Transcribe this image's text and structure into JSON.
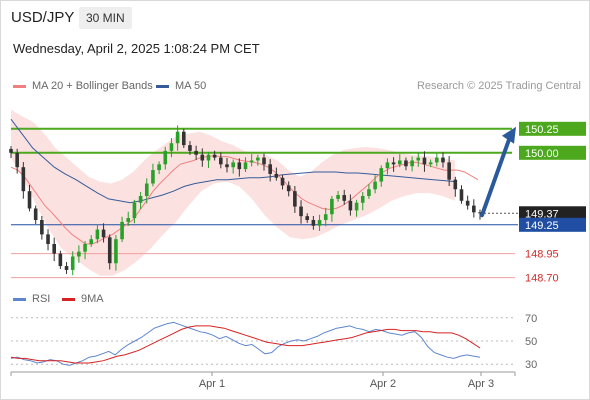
{
  "header": {
    "symbol": "USD/JPY",
    "timeframe": "30 MIN"
  },
  "datetime": "Wednesday, April 2, 2025 1:08:24 PM CET",
  "legend": {
    "ma20": "MA 20 + Bollinger Bands",
    "ma50": "MA 50",
    "credit": "Research © 2025 Trading Central",
    "rsi": "RSI",
    "ma9": "9MA"
  },
  "colors": {
    "candle_up": "#27a127",
    "candle_down": "#333333",
    "ma20": "#f08080",
    "ma50": "#355c99",
    "bollinger": "#fbdcdc",
    "resistance": "#4ca81c",
    "support": "#f2a0a0",
    "pivot": "#1f4ea3",
    "price_label": "#222222",
    "arrow": "#2a5a9c",
    "rsi": "#5e86cf",
    "rsi_ma": "#d62222"
  },
  "chart_data": [
    {
      "type": "candlestick",
      "title": "USD/JPY",
      "ylim": [
        148.55,
        150.55
      ],
      "x_ticks": [
        "Apr 1",
        "Apr 2",
        "Apr 3"
      ],
      "levels": [
        {
          "value": 150.25,
          "label": "150.25",
          "kind": "resistance"
        },
        {
          "value": 150.0,
          "label": "150.00",
          "kind": "resistance"
        },
        {
          "value": 149.37,
          "label": "149.37",
          "kind": "last-price"
        },
        {
          "value": 149.25,
          "label": "149.25",
          "kind": "pivot"
        },
        {
          "value": 148.95,
          "label": "148.95",
          "kind": "support"
        },
        {
          "value": 148.7,
          "label": "148.70",
          "kind": "support"
        }
      ],
      "close": [
        150.0,
        149.85,
        149.6,
        149.42,
        149.3,
        149.15,
        149.05,
        148.95,
        148.82,
        148.78,
        148.92,
        148.97,
        149.05,
        149.1,
        149.2,
        149.12,
        148.85,
        149.1,
        149.28,
        149.32,
        149.48,
        149.55,
        149.68,
        149.82,
        149.88,
        150.02,
        150.1,
        150.22,
        150.08,
        150.02,
        149.98,
        149.92,
        149.98,
        149.95,
        149.88,
        149.85,
        149.9,
        149.83,
        149.9,
        149.92,
        149.95,
        149.88,
        149.78,
        149.74,
        149.66,
        149.6,
        149.44,
        149.34,
        149.3,
        149.24,
        149.3,
        149.36,
        149.52,
        149.56,
        149.5,
        149.4,
        149.48,
        149.55,
        149.62,
        149.7,
        149.84,
        149.9,
        149.88,
        149.92,
        149.86,
        149.92,
        149.95,
        149.88,
        149.9,
        149.95,
        149.9,
        149.72,
        149.62,
        149.5,
        149.45,
        149.38,
        149.37
      ],
      "ma20": [
        149.85,
        149.82,
        149.75,
        149.65,
        149.55,
        149.45,
        149.38,
        149.3,
        149.22,
        149.15,
        149.1,
        149.05,
        149.05,
        149.08,
        149.12,
        149.15,
        149.2,
        149.25,
        149.3,
        149.4,
        149.5,
        149.6,
        149.68,
        149.75,
        149.82,
        149.88,
        149.9,
        149.92,
        149.95,
        149.96,
        149.97,
        149.96,
        149.96,
        149.94,
        149.92,
        149.91,
        149.9,
        149.88,
        149.85,
        149.8,
        149.73,
        149.65,
        149.58,
        149.52,
        149.48,
        149.45,
        149.42,
        149.41,
        149.42,
        149.45,
        149.5,
        149.56,
        149.62,
        149.68,
        149.75,
        149.8,
        149.84,
        149.86,
        149.88,
        149.9,
        149.9,
        149.88,
        149.86,
        149.84,
        149.82,
        149.82,
        149.82,
        149.8,
        149.76,
        149.72
      ],
      "ma50": [
        150.35,
        150.2,
        150.05,
        149.95,
        149.85,
        149.78,
        149.72,
        149.65,
        149.58,
        149.52,
        149.5,
        149.48,
        149.5,
        149.53,
        149.56,
        149.6,
        149.65,
        149.68,
        149.7,
        149.72,
        149.72,
        149.73,
        149.74,
        149.74,
        149.75,
        149.77,
        149.78,
        149.79,
        149.8,
        149.8,
        149.8,
        149.79,
        149.79,
        149.78,
        149.77,
        149.76,
        149.75,
        149.74,
        149.73,
        149.72,
        149.71,
        149.7
      ],
      "bollinger_upper": [
        150.45,
        150.38,
        150.32,
        150.2,
        150.05,
        149.95,
        149.85,
        149.75,
        149.7,
        149.68,
        149.72,
        149.8,
        149.92,
        150.02,
        150.1,
        150.18,
        150.2,
        150.22,
        150.18,
        150.12,
        150.08,
        150.02,
        150.0,
        149.98,
        149.92,
        149.82,
        149.75,
        149.8,
        149.9,
        149.98,
        150.03,
        150.05,
        150.06,
        150.05,
        150.03,
        150.0,
        149.98,
        149.97,
        149.96,
        149.94,
        149.92
      ],
      "bollinger_lower": [
        149.95,
        149.72,
        149.45,
        149.2,
        149.0,
        148.9,
        148.8,
        148.72,
        148.72,
        148.78,
        148.88,
        149.0,
        149.15,
        149.28,
        149.45,
        149.6,
        149.68,
        149.7,
        149.65,
        149.52,
        149.35,
        149.22,
        149.12,
        149.1,
        149.12,
        149.18,
        149.25,
        149.3,
        149.35,
        149.42,
        149.5,
        149.55,
        149.58,
        149.58,
        149.55,
        149.5
      ],
      "pivot_arrow": {
        "from": 149.35,
        "to": 150.25
      }
    },
    {
      "type": "line",
      "title": "RSI",
      "ylim": [
        25,
        75
      ],
      "y_ticks": [
        "70",
        "50",
        "30"
      ],
      "series": [
        {
          "name": "RSI",
          "values": [
            35,
            36,
            34,
            33,
            31,
            32,
            34,
            33,
            30,
            29,
            31,
            33,
            36,
            37,
            39,
            41,
            38,
            43,
            47,
            50,
            53,
            57,
            61,
            63,
            65,
            66,
            64,
            62,
            60,
            58,
            57,
            55,
            52,
            54,
            51,
            48,
            46,
            47,
            43,
            39,
            40,
            45,
            48,
            50,
            51,
            50,
            52,
            54,
            57,
            59,
            61,
            62,
            63,
            61,
            60,
            58,
            60,
            59,
            57,
            56,
            55,
            57,
            58,
            53,
            45,
            40,
            38,
            36,
            35,
            37,
            38,
            37,
            36
          ]
        },
        {
          "name": "9MA",
          "values": [
            36,
            35,
            35,
            34,
            33,
            33,
            33,
            33,
            32,
            31,
            31,
            31,
            32,
            33,
            35,
            37,
            38,
            40,
            42,
            45,
            48,
            51,
            54,
            57,
            60,
            62,
            63,
            63,
            63,
            62,
            61,
            59,
            57,
            55,
            53,
            51,
            49,
            48,
            47,
            46,
            46,
            46,
            47,
            48,
            49,
            50,
            51,
            52,
            53,
            55,
            57,
            58,
            59,
            60,
            60,
            59,
            59,
            59,
            58,
            58,
            57,
            57,
            57,
            55,
            52,
            48,
            44
          ]
        }
      ]
    }
  ]
}
